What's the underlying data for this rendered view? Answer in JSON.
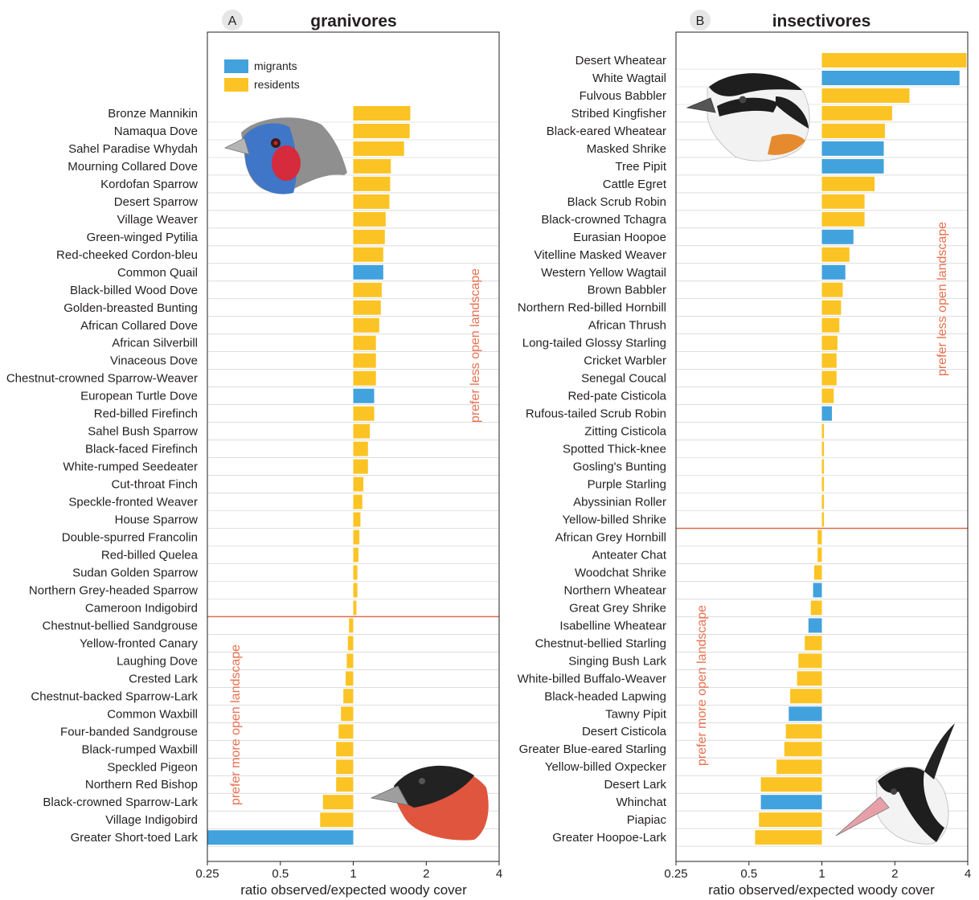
{
  "colors": {
    "migrants": "#41a2dd",
    "residents": "#fbc424",
    "threshold": "#e06a4c",
    "annotation": "#e8704f",
    "rowline": "#c9c9c9"
  },
  "xlabel": "ratio observed/expected woody cover",
  "xticks": [
    "0.25",
    "0.5",
    "1",
    "2",
    "4"
  ],
  "legend": {
    "migrants": "migrants",
    "residents": "residents"
  },
  "panels": {
    "A": {
      "letter": "A",
      "title": "granivores",
      "label_less": "prefer less open landscape",
      "label_more": "prefer more open landscape",
      "bird_icon": "blue-waxbill-illustration",
      "bird_icon_2": "red-bishop-illustration"
    },
    "B": {
      "letter": "B",
      "title": "insectivores",
      "label_less": "prefer less open landscape",
      "label_more": "prefer more open landscape",
      "bird_icon": "masked-shrike-illustration",
      "bird_icon_2": "hoopoe-lark-illustration"
    }
  },
  "chart_data": [
    {
      "type": "bar",
      "orientation": "horizontal",
      "panel": "A",
      "title": "granivores",
      "xlabel": "ratio observed/expected woody cover",
      "xscale": "log2",
      "xlim": [
        0.25,
        4
      ],
      "legend_placement": "top-left",
      "series": [
        {
          "name": "migrants"
        },
        {
          "name": "residents"
        }
      ],
      "categories": [
        "Bronze Mannikin",
        "Namaqua Dove",
        "Sahel Paradise Whydah",
        "Mourning Collared Dove",
        "Kordofan Sparrow",
        "Desert Sparrow",
        "Village Weaver",
        "Green-winged Pytilia",
        "Red-cheeked Cordon-bleu",
        "Common Quail",
        "Black-billed Wood Dove",
        "Golden-breasted Bunting",
        "African Collared Dove",
        "African Silverbill",
        "Vinaceous Dove",
        "Chestnut-crowned Sparrow-Weaver",
        "European Turtle Dove",
        "Red-billed Firefinch",
        "Sahel Bush Sparrow",
        "Black-faced Firefinch",
        "White-rumped Seedeater",
        "Cut-throat Finch",
        "Speckle-fronted Weaver",
        "House Sparrow",
        "Double-spurred Francolin",
        "Red-billed Quelea",
        "Sudan Golden Sparrow",
        "Northern Grey-headed Sparrow",
        "Cameroon Indigobird",
        "Chestnut-bellied Sandgrouse",
        "Yellow-fronted Canary",
        "Laughing Dove",
        "Crested Lark",
        "Chestnut-backed Sparrow-Lark",
        "Common Waxbill",
        "Four-banded Sandgrouse",
        "Black-rumped Waxbill",
        "Speckled Pigeon",
        "Northern Red Bishop",
        "Black-crowned Sparrow-Lark",
        "Village Indigobird",
        "Greater Short-toed Lark"
      ],
      "values": [
        1.72,
        1.71,
        1.62,
        1.43,
        1.42,
        1.41,
        1.36,
        1.35,
        1.33,
        1.33,
        1.31,
        1.3,
        1.28,
        1.24,
        1.24,
        1.24,
        1.22,
        1.22,
        1.17,
        1.15,
        1.15,
        1.1,
        1.09,
        1.07,
        1.06,
        1.05,
        1.04,
        1.04,
        1.03,
        0.96,
        0.95,
        0.94,
        0.93,
        0.91,
        0.89,
        0.87,
        0.85,
        0.85,
        0.85,
        0.75,
        0.73,
        0.25
      ],
      "groups": [
        "residents",
        "residents",
        "residents",
        "residents",
        "residents",
        "residents",
        "residents",
        "residents",
        "residents",
        "migrants",
        "residents",
        "residents",
        "residents",
        "residents",
        "residents",
        "residents",
        "migrants",
        "residents",
        "residents",
        "residents",
        "residents",
        "residents",
        "residents",
        "residents",
        "residents",
        "residents",
        "residents",
        "residents",
        "residents",
        "residents",
        "residents",
        "residents",
        "residents",
        "residents",
        "residents",
        "residents",
        "residents",
        "residents",
        "residents",
        "residents",
        "residents",
        "migrants"
      ]
    },
    {
      "type": "bar",
      "orientation": "horizontal",
      "panel": "B",
      "title": "insectivores",
      "xlabel": "ratio observed/expected woody cover",
      "xscale": "log2",
      "xlim": [
        0.25,
        4
      ],
      "series": [
        {
          "name": "migrants"
        },
        {
          "name": "residents"
        }
      ],
      "categories": [
        "Desert Wheatear",
        "White Wagtail",
        "Fulvous Babbler ",
        "Stribed Kingfisher",
        "Black-eared Wheatear",
        "Masked Shrike",
        "Tree Pipit",
        "Cattle Egret",
        "Black Scrub Robin",
        "Black-crowned Tchagra",
        "Eurasian Hoopoe",
        "Vitelline Masked Weaver",
        "Western Yellow Wagtail",
        "Brown Babbler",
        "Northern Red-billed Hornbill",
        "African Thrush",
        "Long-tailed Glossy Starling",
        "Cricket Warbler",
        "Senegal Coucal",
        "Red-pate Cisticola",
        "Rufous-tailed Scrub Robin",
        "Zitting Cisticola",
        "Spotted Thick-knee",
        "Gosling's Bunting",
        "Purple Starling",
        "Abyssinian Roller",
        "Yellow-billed Shrike",
        "African Grey Hornbill",
        "Anteater Chat",
        "Woodchat Shrike",
        "Northern Wheatear",
        "Great Grey Shrike",
        "Isabelline Wheatear",
        "Chestnut-bellied Starling",
        "Singing Bush Lark",
        "White-billed Buffalo-Weaver",
        "Black-headed Lapwing",
        "Tawny Pipit",
        "Desert Cisticola",
        "Greater Blue-eared Starling",
        "Yellow-billed Oxpecker",
        "Desert Lark",
        "Whinchat",
        "Piapiac",
        "Greater Hoopoe-Lark"
      ],
      "values": [
        3.95,
        3.7,
        2.3,
        1.95,
        1.82,
        1.8,
        1.8,
        1.65,
        1.5,
        1.5,
        1.35,
        1.3,
        1.25,
        1.22,
        1.2,
        1.18,
        1.16,
        1.15,
        1.15,
        1.12,
        1.1,
        1.02,
        1.02,
        1.02,
        1.02,
        1.02,
        1.02,
        0.96,
        0.96,
        0.93,
        0.92,
        0.9,
        0.88,
        0.85,
        0.8,
        0.79,
        0.74,
        0.73,
        0.71,
        0.7,
        0.65,
        0.56,
        0.56,
        0.55,
        0.53
      ],
      "groups": [
        "residents",
        "migrants",
        "residents",
        "residents",
        "residents",
        "migrants",
        "migrants",
        "residents",
        "residents",
        "residents",
        "migrants",
        "residents",
        "migrants",
        "residents",
        "residents",
        "residents",
        "residents",
        "residents",
        "residents",
        "residents",
        "migrants",
        "residents",
        "residents",
        "residents",
        "residents",
        "residents",
        "residents",
        "residents",
        "residents",
        "residents",
        "migrants",
        "residents",
        "migrants",
        "residents",
        "residents",
        "residents",
        "residents",
        "migrants",
        "residents",
        "residents",
        "residents",
        "residents",
        "migrants",
        "residents",
        "residents"
      ]
    }
  ]
}
